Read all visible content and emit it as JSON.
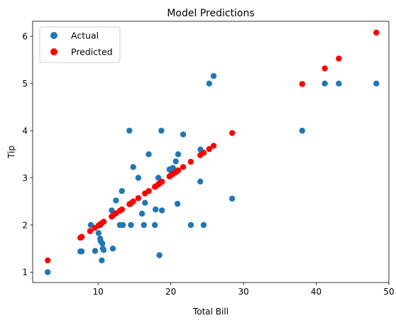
{
  "chart_data": {
    "type": "scatter",
    "title": "Model Predictions",
    "xlabel": "Total Bill",
    "ylabel": "Tip",
    "xlim": [
      1.0,
      50.0
    ],
    "ylim": [
      0.78,
      6.32
    ],
    "xticks": [
      10,
      20,
      30,
      40,
      50
    ],
    "yticks": [
      1,
      2,
      3,
      4,
      5,
      6
    ],
    "grid": false,
    "legend_position": "top-left",
    "series": [
      {
        "name": "Actual",
        "color": "#1f77b4",
        "points": [
          [
            3.07,
            1.0
          ],
          [
            7.56,
            1.44
          ],
          [
            7.74,
            1.44
          ],
          [
            9.0,
            2.0
          ],
          [
            9.6,
            1.45
          ],
          [
            10.07,
            1.83
          ],
          [
            10.29,
            1.71
          ],
          [
            10.34,
            1.66
          ],
          [
            10.33,
            2.0
          ],
          [
            10.51,
            1.25
          ],
          [
            10.59,
            1.61
          ],
          [
            10.65,
            1.5
          ],
          [
            10.77,
            1.47
          ],
          [
            11.87,
            2.31
          ],
          [
            12.03,
            1.5
          ],
          [
            12.46,
            2.52
          ],
          [
            13.0,
            2.0
          ],
          [
            13.28,
            2.72
          ],
          [
            13.42,
            2.0
          ],
          [
            14.31,
            4.0
          ],
          [
            14.52,
            2.0
          ],
          [
            14.83,
            3.23
          ],
          [
            15.53,
            3.0
          ],
          [
            16.04,
            2.24
          ],
          [
            16.31,
            2.0
          ],
          [
            16.45,
            2.47
          ],
          [
            16.97,
            3.5
          ],
          [
            17.92,
            2.33
          ],
          [
            17.81,
            2.0
          ],
          [
            18.29,
            3.0
          ],
          [
            18.43,
            1.36
          ],
          [
            18.71,
            4.0
          ],
          [
            18.78,
            2.31
          ],
          [
            19.82,
            3.18
          ],
          [
            20.08,
            3.15
          ],
          [
            20.29,
            3.21
          ],
          [
            20.69,
            3.35
          ],
          [
            20.92,
            2.45
          ],
          [
            21.01,
            3.5
          ],
          [
            21.7,
            3.92
          ],
          [
            22.76,
            2.0
          ],
          [
            24.06,
            2.92
          ],
          [
            24.08,
            3.6
          ],
          [
            24.52,
            2.0
          ],
          [
            25.29,
            5.0
          ],
          [
            25.89,
            5.16
          ],
          [
            28.44,
            2.56
          ],
          [
            38.07,
            4.0
          ],
          [
            41.19,
            5.0
          ],
          [
            43.11,
            5.0
          ],
          [
            48.27,
            5.0
          ]
        ]
      },
      {
        "name": "Predicted",
        "color": "#ff0000",
        "points": [
          [
            3.07,
            1.25
          ],
          [
            7.56,
            1.73
          ],
          [
            7.74,
            1.75
          ],
          [
            8.9,
            1.87
          ],
          [
            9.55,
            1.94
          ],
          [
            10.07,
            1.99
          ],
          [
            10.33,
            2.02
          ],
          [
            10.51,
            2.04
          ],
          [
            10.77,
            2.07
          ],
          [
            11.87,
            2.18
          ],
          [
            12.03,
            2.2
          ],
          [
            12.46,
            2.25
          ],
          [
            13.0,
            2.3
          ],
          [
            13.28,
            2.33
          ],
          [
            14.31,
            2.44
          ],
          [
            14.52,
            2.46
          ],
          [
            14.83,
            2.5
          ],
          [
            15.53,
            2.57
          ],
          [
            16.45,
            2.67
          ],
          [
            16.97,
            2.72
          ],
          [
            17.81,
            2.81
          ],
          [
            17.92,
            2.82
          ],
          [
            18.29,
            2.86
          ],
          [
            18.43,
            2.88
          ],
          [
            18.71,
            2.91
          ],
          [
            18.78,
            2.92
          ],
          [
            19.82,
            3.03
          ],
          [
            20.08,
            3.06
          ],
          [
            20.29,
            3.08
          ],
          [
            20.69,
            3.12
          ],
          [
            20.92,
            3.15
          ],
          [
            21.01,
            3.16
          ],
          [
            21.7,
            3.23
          ],
          [
            22.76,
            3.34
          ],
          [
            24.06,
            3.48
          ],
          [
            24.52,
            3.53
          ],
          [
            25.29,
            3.61
          ],
          [
            25.89,
            3.68
          ],
          [
            28.44,
            3.95
          ],
          [
            38.07,
            4.99
          ],
          [
            41.19,
            5.32
          ],
          [
            43.11,
            5.53
          ],
          [
            48.27,
            6.08
          ]
        ]
      }
    ]
  }
}
